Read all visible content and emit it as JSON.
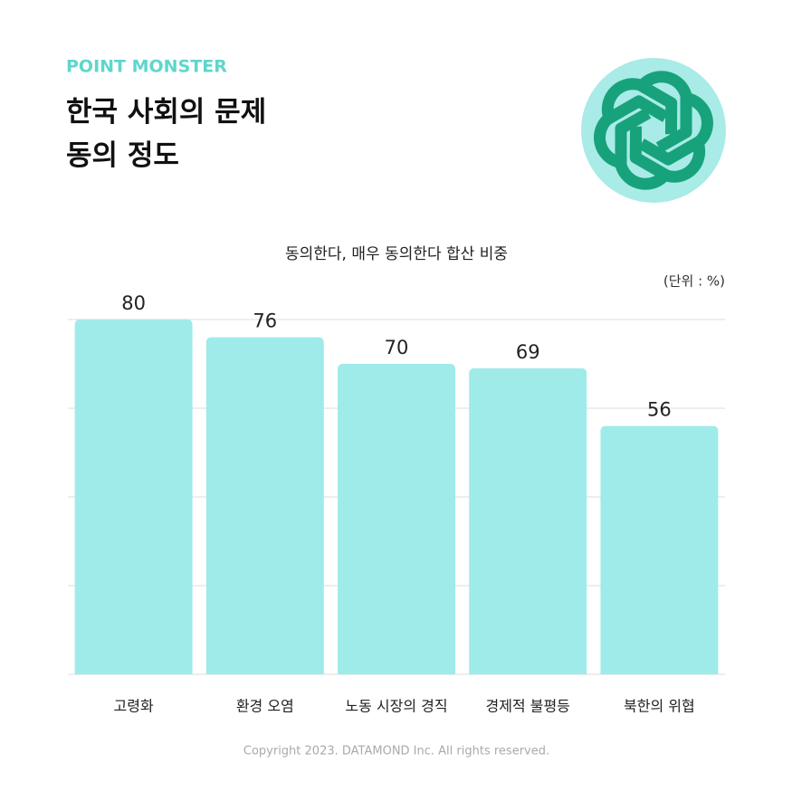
{
  "chart_data": {
    "type": "bar",
    "brand": "POINT MONSTER",
    "title": "한국 사회의 문제\n동의 정도",
    "subtitle": "동의한다, 매우 동의한다 합산 비중",
    "unit": "(단위 : %)",
    "categories": [
      "고령화",
      "환경 오염",
      "노동 시장의 경직",
      "경제적 불평등",
      "북한의 위협"
    ],
    "values": [
      80,
      76,
      70,
      69,
      56
    ],
    "color": "#9eebea",
    "ylim": [
      0,
      80
    ],
    "yticks": [
      0,
      20,
      40,
      60,
      80
    ],
    "grid": true,
    "footer": "Copyright 2023. DATAMOND Inc. All rights reserved."
  }
}
